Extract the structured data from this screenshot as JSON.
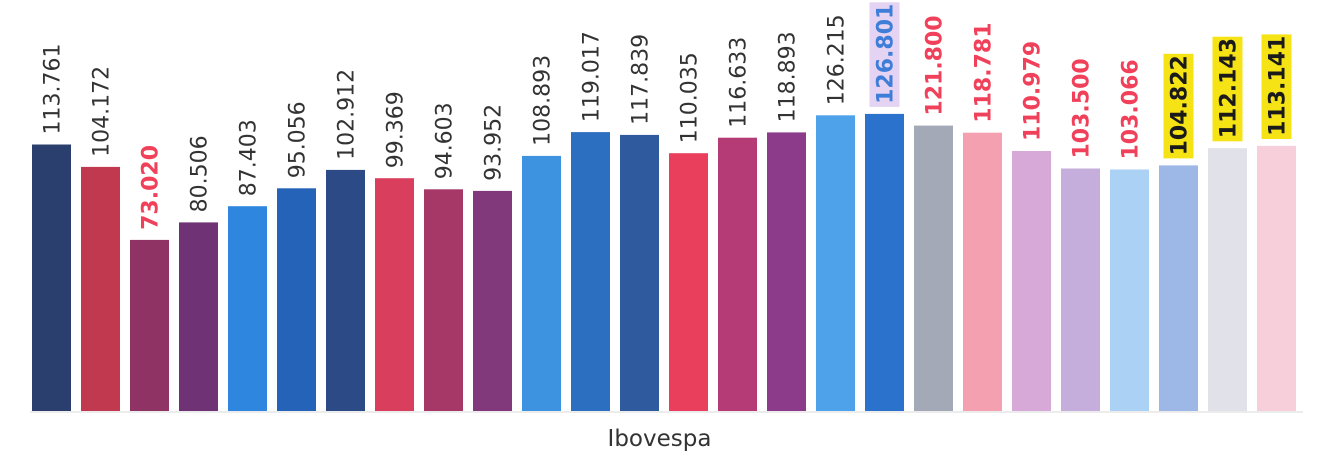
{
  "chart_data": {
    "type": "bar",
    "title": "",
    "xlabel": "Ibovespa",
    "ylabel": "",
    "ylim": [
      0,
      130
    ],
    "grid": false,
    "legend": "none",
    "bars": [
      {
        "value": 113.761,
        "label": "113.761",
        "color": "#2B3F6E",
        "label_color": "#333333",
        "label_bold": false,
        "label_bg": null
      },
      {
        "value": 104.172,
        "label": "104.172",
        "color": "#C0394E",
        "label_color": "#333333",
        "label_bold": false,
        "label_bg": null
      },
      {
        "value": 73.02,
        "label": "73.020",
        "color": "#8E3364",
        "label_color": "#F0405A",
        "label_bold": true,
        "label_bg": null
      },
      {
        "value": 80.506,
        "label": "80.506",
        "color": "#6E3275",
        "label_color": "#333333",
        "label_bold": false,
        "label_bg": null
      },
      {
        "value": 87.403,
        "label": "87.403",
        "color": "#2F86DE",
        "label_color": "#333333",
        "label_bold": false,
        "label_bg": null
      },
      {
        "value": 95.056,
        "label": "95.056",
        "color": "#2563B8",
        "label_color": "#333333",
        "label_bold": false,
        "label_bg": null
      },
      {
        "value": 102.912,
        "label": "102.912",
        "color": "#2B4A86",
        "label_color": "#333333",
        "label_bold": false,
        "label_bg": null
      },
      {
        "value": 99.369,
        "label": "99.369",
        "color": "#D93E5C",
        "label_color": "#333333",
        "label_bold": false,
        "label_bg": null
      },
      {
        "value": 94.603,
        "label": "94.603",
        "color": "#A63868",
        "label_color": "#333333",
        "label_bold": false,
        "label_bg": null
      },
      {
        "value": 93.952,
        "label": "93.952",
        "color": "#82397C",
        "label_color": "#333333",
        "label_bold": false,
        "label_bg": null
      },
      {
        "value": 108.893,
        "label": "108.893",
        "color": "#3E93E0",
        "label_color": "#333333",
        "label_bold": false,
        "label_bg": null
      },
      {
        "value": 119.017,
        "label": "119.017",
        "color": "#2C6FC1",
        "label_color": "#333333",
        "label_bold": false,
        "label_bg": null
      },
      {
        "value": 117.839,
        "label": "117.839",
        "color": "#2F5A9E",
        "label_color": "#333333",
        "label_bold": false,
        "label_bg": null
      },
      {
        "value": 110.035,
        "label": "110.035",
        "color": "#EA3F5C",
        "label_color": "#333333",
        "label_bold": false,
        "label_bg": null
      },
      {
        "value": 116.633,
        "label": "116.633",
        "color": "#B53B77",
        "label_color": "#333333",
        "label_bold": false,
        "label_bg": null
      },
      {
        "value": 118.893,
        "label": "118.893",
        "color": "#8C3B8A",
        "label_color": "#333333",
        "label_bold": false,
        "label_bg": null
      },
      {
        "value": 126.215,
        "label": "126.215",
        "color": "#4DA2EA",
        "label_color": "#333333",
        "label_bold": false,
        "label_bg": null
      },
      {
        "value": 126.801,
        "label": "126.801",
        "color": "#2A72CC",
        "label_color": "#3E7ED8",
        "label_bold": true,
        "label_bg": "#E4D3F2"
      },
      {
        "value": 121.8,
        "label": "121.800",
        "color": "#A4A9B8",
        "label_color": "#F0405A",
        "label_bold": true,
        "label_bg": null
      },
      {
        "value": 118.781,
        "label": "118.781",
        "color": "#F5A0B0",
        "label_color": "#F0405A",
        "label_bold": true,
        "label_bg": null
      },
      {
        "value": 110.979,
        "label": "110.979",
        "color": "#D7A9D8",
        "label_color": "#F0405A",
        "label_bold": true,
        "label_bg": null
      },
      {
        "value": 103.5,
        "label": "103.500",
        "color": "#C6AEDC",
        "label_color": "#F0405A",
        "label_bold": true,
        "label_bg": null
      },
      {
        "value": 103.066,
        "label": "103.066",
        "color": "#ABD1F5",
        "label_color": "#F0405A",
        "label_bold": true,
        "label_bg": null
      },
      {
        "value": 104.822,
        "label": "104.822",
        "color": "#9DB7E6",
        "label_color": "#1A1A1A",
        "label_bold": true,
        "label_bg": "#F6E316"
      },
      {
        "value": 112.143,
        "label": "112.143",
        "color": "#E1E1EA",
        "label_color": "#1A1A1A",
        "label_bold": true,
        "label_bg": "#F6E316"
      },
      {
        "value": 113.141,
        "label": "113.141",
        "color": "#F7CFDB",
        "label_color": "#1A1A1A",
        "label_bold": true,
        "label_bg": "#F6E316"
      }
    ]
  }
}
